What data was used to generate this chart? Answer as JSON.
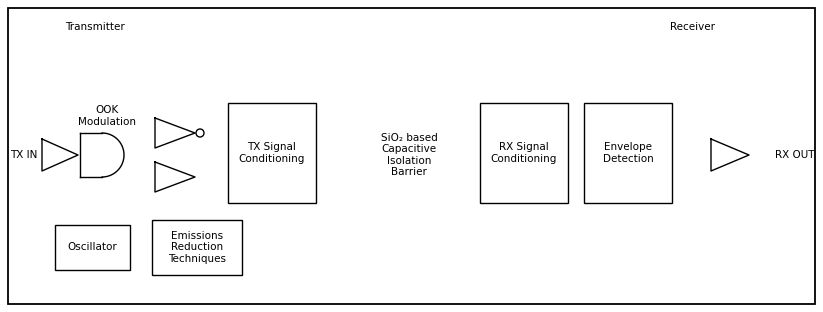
{
  "bg_color": "#ffffff",
  "line_color": "#000000",
  "fig_width": 8.23,
  "fig_height": 3.12,
  "transmitter_label": "Transmitter",
  "receiver_label": "Receiver",
  "txin_label": "TX IN",
  "rxout_label": "RX OUT",
  "ook_label": "OOK\nModulation",
  "tx_signal_label": "TX Signal\nConditioning",
  "sio2_label": "SiO₂ based\nCapacitive\nIsolation\nBarrier",
  "rx_signal_label": "RX Signal\nConditioning",
  "envelope_label": "Envelope\nDetection",
  "oscillator_label": "Oscillator",
  "emissions_label": "Emissions\nReduction\nTechniques",
  "font_size": 8,
  "small_font": 7.5
}
